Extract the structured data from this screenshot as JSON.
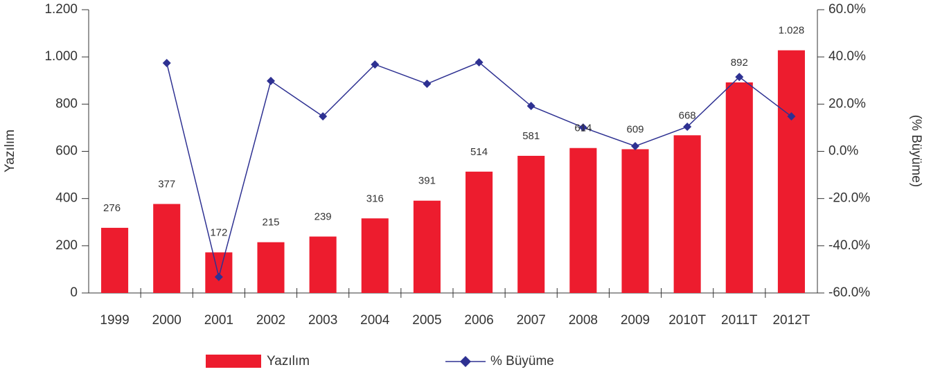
{
  "chart_data": {
    "type": "bar_line",
    "categories": [
      "1999",
      "2000",
      "2001",
      "2002",
      "2003",
      "2004",
      "2005",
      "2006",
      "2007",
      "2008",
      "2009",
      "2010T",
      "2011T",
      "2012T"
    ],
    "series": [
      {
        "name": "Yazılım",
        "type": "bar",
        "color": "#ed1c2e",
        "values": [
          276,
          377,
          172,
          215,
          239,
          316,
          391,
          514,
          581,
          614,
          609,
          668,
          892,
          1028
        ],
        "value_labels": [
          "276",
          "377",
          "172",
          "215",
          "239",
          "316",
          "391",
          "514",
          "581",
          "614",
          "609",
          "668",
          "892",
          "1.028"
        ]
      },
      {
        "name": "% Büyüme",
        "type": "line",
        "axis": "y2",
        "color": "#2e3192",
        "values": [
          null,
          37.4,
          -53.2,
          29.8,
          14.8,
          36.8,
          28.6,
          37.7,
          19.2,
          10.1,
          2.2,
          10.4,
          31.5,
          14.8
        ]
      }
    ],
    "y_label": "Yazılım",
    "y2_label": "(% Büyüme)",
    "ylim": [
      0,
      1200
    ],
    "yticks": [
      0,
      200,
      400,
      600,
      800,
      {
        "value": 1000,
        "label": "1.000"
      },
      {
        "value": 1200,
        "label": "1.200"
      }
    ],
    "y2lim": [
      -60,
      60
    ],
    "y2ticks": [
      {
        "value": -60,
        "label": "-60.0%"
      },
      {
        "value": -40,
        "label": "-40.0%"
      },
      {
        "value": -20,
        "label": "-20.0%"
      },
      {
        "value": 0,
        "label": "0.0%"
      },
      {
        "value": 20,
        "label": "20.0%"
      },
      {
        "value": 40,
        "label": "40.0%"
      },
      {
        "value": 60,
        "label": "60.0%"
      }
    ],
    "legend": "bottom"
  }
}
